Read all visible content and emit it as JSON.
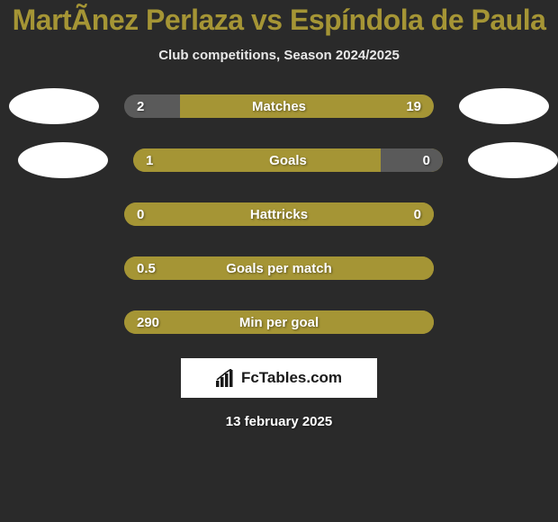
{
  "title": "MartÃ­nez Perlaza vs Espíndola de Paula",
  "subtitle": "Club competitions, Season 2024/2025",
  "colors": {
    "accent": "#a59535",
    "neutral": "#5a5a5a",
    "track_bg": "#3a3a3a",
    "background": "#2a2a2a",
    "text_light": "#ffffff"
  },
  "bars": [
    {
      "label": "Matches",
      "left_value": "2",
      "right_value": "19",
      "left_pct": 18,
      "right_pct": 82,
      "left_color": "#5a5a5a",
      "right_color": "#a59535",
      "show_avatars": true
    },
    {
      "label": "Goals",
      "left_value": "1",
      "right_value": "0",
      "left_pct": 80,
      "right_pct": 20,
      "left_color": "#a59535",
      "right_color": "#5a5a5a",
      "show_avatars": true
    },
    {
      "label": "Hattricks",
      "left_value": "0",
      "right_value": "0",
      "left_pct": 100,
      "right_pct": 0,
      "left_color": "#a59535",
      "right_color": "#a59535",
      "show_avatars": false
    },
    {
      "label": "Goals per match",
      "left_value": "0.5",
      "right_value": "",
      "left_pct": 100,
      "right_pct": 0,
      "left_color": "#a59535",
      "right_color": "#a59535",
      "show_avatars": false
    },
    {
      "label": "Min per goal",
      "left_value": "290",
      "right_value": "",
      "left_pct": 100,
      "right_pct": 0,
      "left_color": "#a59535",
      "right_color": "#a59535",
      "show_avatars": false
    }
  ],
  "logo_text": "FcTables.com",
  "date": "13 february 2025",
  "avatar_offsets": [
    {
      "left_ml": 10,
      "right_mr": 10
    },
    {
      "left_ml": 20,
      "right_mr": 0
    }
  ]
}
